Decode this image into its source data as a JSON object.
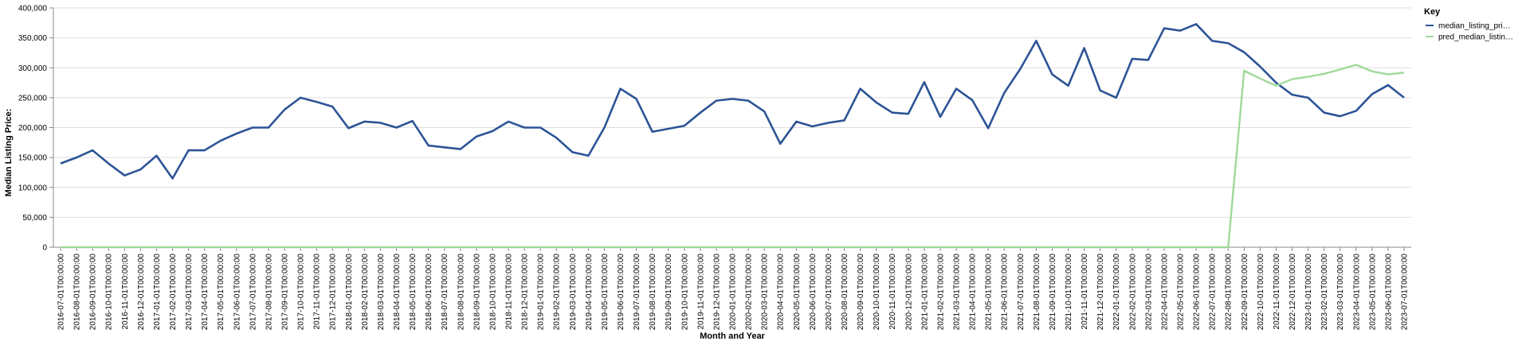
{
  "chart_data": {
    "type": "line",
    "xlabel": "Month and Year",
    "ylabel": "Median Listing Price:",
    "ylim": [
      0,
      400000
    ],
    "yticks": [
      "0",
      "50,000",
      "100,000",
      "150,000",
      "200,000",
      "250,000",
      "300,000",
      "350,000",
      "400,000"
    ],
    "ytick_values": [
      0,
      50000,
      100000,
      150000,
      200000,
      250000,
      300000,
      350000,
      400000
    ],
    "grid": true,
    "legend": {
      "title": "Key",
      "placement": "top-right"
    },
    "x": [
      "2016-07-01T00:00:00",
      "2016-08-01T00:00:00",
      "2016-09-01T00:00:00",
      "2016-10-01T00:00:00",
      "2016-11-01T00:00:00",
      "2016-12-01T00:00:00",
      "2017-01-01T00:00:00",
      "2017-02-01T00:00:00",
      "2017-03-01T00:00:00",
      "2017-04-01T00:00:00",
      "2017-05-01T00:00:00",
      "2017-06-01T00:00:00",
      "2017-07-01T00:00:00",
      "2017-08-01T00:00:00",
      "2017-09-01T00:00:00",
      "2017-10-01T00:00:00",
      "2017-11-01T00:00:00",
      "2017-12-01T00:00:00",
      "2018-01-01T00:00:00",
      "2018-02-01T00:00:00",
      "2018-03-01T00:00:00",
      "2018-04-01T00:00:00",
      "2018-05-01T00:00:00",
      "2018-06-01T00:00:00",
      "2018-07-01T00:00:00",
      "2018-08-01T00:00:00",
      "2018-09-01T00:00:00",
      "2018-10-01T00:00:00",
      "2018-11-01T00:00:00",
      "2018-12-01T00:00:00",
      "2019-01-01T00:00:00",
      "2019-02-01T00:00:00",
      "2019-03-01T00:00:00",
      "2019-04-01T00:00:00",
      "2019-05-01T00:00:00",
      "2019-06-01T00:00:00",
      "2019-07-01T00:00:00",
      "2019-08-01T00:00:00",
      "2019-09-01T00:00:00",
      "2019-10-01T00:00:00",
      "2019-11-01T00:00:00",
      "2019-12-01T00:00:00",
      "2020-01-01T00:00:00",
      "2020-02-01T00:00:00",
      "2020-03-01T00:00:00",
      "2020-04-01T00:00:00",
      "2020-05-01T00:00:00",
      "2020-06-01T00:00:00",
      "2020-07-01T00:00:00",
      "2020-08-01T00:00:00",
      "2020-09-01T00:00:00",
      "2020-10-01T00:00:00",
      "2020-11-01T00:00:00",
      "2020-12-01T00:00:00",
      "2021-01-01T00:00:00",
      "2021-02-01T00:00:00",
      "2021-03-01T00:00:00",
      "2021-04-01T00:00:00",
      "2021-05-01T00:00:00",
      "2021-06-01T00:00:00",
      "2021-07-01T00:00:00",
      "2021-08-01T00:00:00",
      "2021-09-01T00:00:00",
      "2021-10-01T00:00:00",
      "2021-11-01T00:00:00",
      "2021-12-01T00:00:00",
      "2022-01-01T00:00:00",
      "2022-02-01T00:00:00",
      "2022-03-01T00:00:00",
      "2022-04-01T00:00:00",
      "2022-05-01T00:00:00",
      "2022-06-01T00:00:00",
      "2022-07-01T00:00:00",
      "2022-08-01T00:00:00",
      "2022-09-01T00:00:00",
      "2022-10-01T00:00:00",
      "2022-11-01T00:00:00",
      "2022-12-01T00:00:00",
      "2023-01-01T00:00:00",
      "2023-02-01T00:00:00",
      "2023-03-01T00:00:00",
      "2023-04-01T00:00:00",
      "2023-05-01T00:00:00",
      "2023-06-01T00:00:00",
      "2023-07-01T00:00:00"
    ],
    "series": [
      {
        "name": "median_listing_pri…",
        "color": "#2d5496",
        "values": [
          140000,
          150000,
          162000,
          140000,
          120000,
          130000,
          153000,
          115000,
          162000,
          162000,
          178000,
          190000,
          200000,
          200000,
          230000,
          250000,
          243000,
          235000,
          199000,
          210000,
          208000,
          200000,
          211000,
          170000,
          167000,
          164000,
          185000,
          194000,
          210000,
          200000,
          200000,
          183000,
          159000,
          153000,
          200000,
          265000,
          248000,
          193000,
          198000,
          203000,
          225000,
          245000,
          248000,
          245000,
          227000,
          173000,
          210000,
          202000,
          208000,
          212000,
          265000,
          242000,
          225000,
          223000,
          276000,
          218000,
          265000,
          246000,
          199000,
          258000,
          298000,
          345000,
          289000,
          270000,
          333000,
          262000,
          250000,
          315000,
          313000,
          366000,
          362000,
          373000,
          345000,
          341000,
          326000,
          302000,
          275000,
          255000,
          250000,
          225000,
          219000,
          228000,
          256000,
          271000,
          250000
        ]
      },
      {
        "name": "pred_median_listin…",
        "color": "#a0d99a",
        "values": [
          0,
          0,
          0,
          0,
          0,
          0,
          0,
          0,
          0,
          0,
          0,
          0,
          0,
          0,
          0,
          0,
          0,
          0,
          0,
          0,
          0,
          0,
          0,
          0,
          0,
          0,
          0,
          0,
          0,
          0,
          0,
          0,
          0,
          0,
          0,
          0,
          0,
          0,
          0,
          0,
          0,
          0,
          0,
          0,
          0,
          0,
          0,
          0,
          0,
          0,
          0,
          0,
          0,
          0,
          0,
          0,
          0,
          0,
          0,
          0,
          0,
          0,
          0,
          0,
          0,
          0,
          0,
          0,
          0,
          0,
          0,
          0,
          0,
          0,
          295000,
          282000,
          270000,
          281000,
          285000,
          290000,
          297000,
          305000,
          294000,
          289000,
          292000
        ]
      }
    ]
  }
}
